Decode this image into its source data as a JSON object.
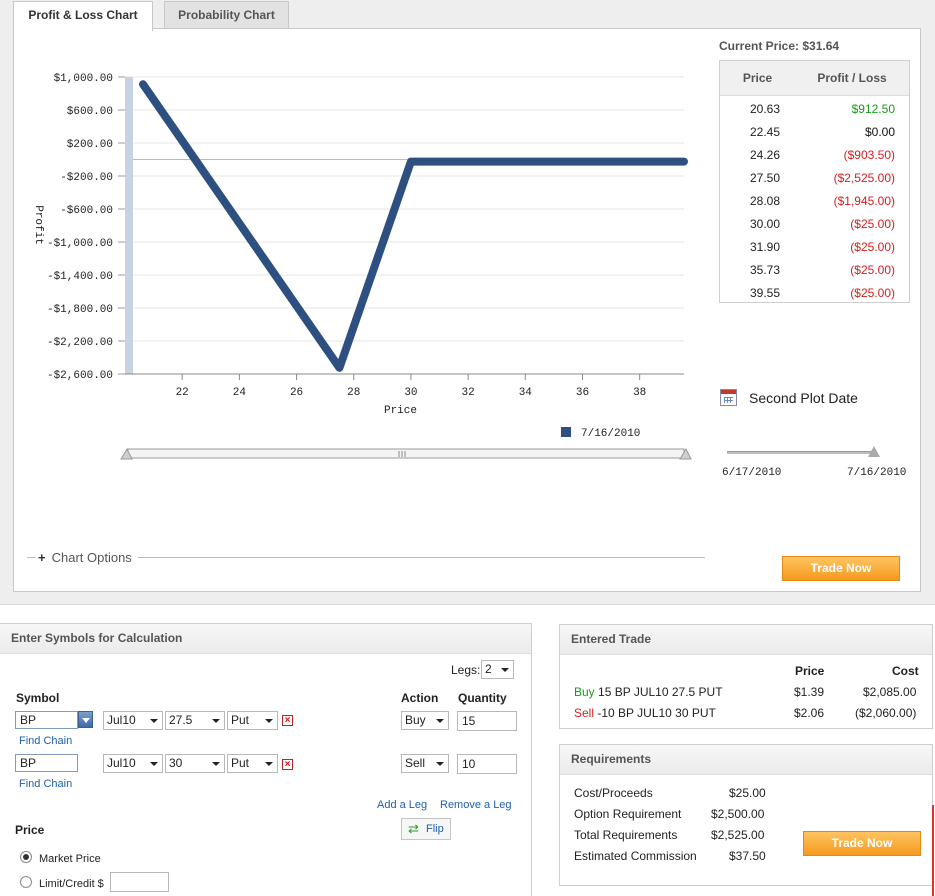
{
  "tabs": [
    {
      "label": "Profit & Loss Chart",
      "active": true
    },
    {
      "label": "Probability Chart",
      "active": false
    }
  ],
  "current_price": "Current Price: $31.64",
  "pl_table": {
    "headers": [
      "Price",
      "Profit / Loss"
    ],
    "rows": [
      {
        "price": "20.63",
        "pl": "$912.50",
        "sign": "pos"
      },
      {
        "price": "22.45",
        "pl": "$0.00",
        "sign": "zero"
      },
      {
        "price": "24.26",
        "pl": "($903.50)",
        "sign": "neg"
      },
      {
        "price": "27.50",
        "pl": "($2,525.00)",
        "sign": "neg"
      },
      {
        "price": "28.08",
        "pl": "($1,945.00)",
        "sign": "neg"
      },
      {
        "price": "30.00",
        "pl": "($25.00)",
        "sign": "neg"
      },
      {
        "price": "31.90",
        "pl": "($25.00)",
        "sign": "neg"
      },
      {
        "price": "35.73",
        "pl": "($25.00)",
        "sign": "neg"
      },
      {
        "price": "39.55",
        "pl": "($25.00)",
        "sign": "neg"
      }
    ]
  },
  "chart_data": {
    "type": "line",
    "title": "",
    "xlabel": "Price",
    "ylabel": "Profit",
    "xlim": [
      20.0,
      39.55
    ],
    "ylim": [
      -2600,
      1000
    ],
    "x_ticks": [
      22,
      24,
      26,
      28,
      30,
      32,
      34,
      36,
      38
    ],
    "y_ticks": [
      1000,
      600,
      200,
      -200,
      -600,
      -1000,
      -1400,
      -1800,
      -2200,
      -2600
    ],
    "y_tick_labels": [
      "$1,000.00",
      "$600.00",
      "$200.00",
      "-$200.00",
      "-$600.00",
      "-$1,000.00",
      "-$1,400.00",
      "-$1,800.00",
      "-$2,200.00",
      "-$2,600.00"
    ],
    "grid": true,
    "legend_position": "bottom-right",
    "series": [
      {
        "name": "7/16/2010",
        "color": "#2e5080",
        "x": [
          20.63,
          27.5,
          30.0,
          39.55
        ],
        "y": [
          912.5,
          -2525.0,
          -25.0,
          -25.0
        ]
      }
    ]
  },
  "second_plot": {
    "label": "Second Plot Date",
    "icon": "calendar-icon",
    "start": "6/17/2010",
    "end": "7/16/2010"
  },
  "chart_options_label": "Chart Options",
  "trade_now_label": "Trade Now",
  "calc": {
    "title": "Enter Symbols for Calculation",
    "legs_label": "Legs:",
    "legs_value": "2",
    "symbol_header": "Symbol",
    "action_header": "Action",
    "quantity_header": "Quantity",
    "find_chain": "Find Chain",
    "legs": [
      {
        "symbol": "BP",
        "expiry": "Jul10",
        "strike": "27.5",
        "type": "Put",
        "action": "Buy",
        "quantity": "15"
      },
      {
        "symbol": "BP",
        "expiry": "Jul10",
        "strike": "30",
        "type": "Put",
        "action": "Sell",
        "quantity": "10"
      }
    ],
    "add_leg": "Add a Leg",
    "remove_leg": "Remove a Leg",
    "flip": "Flip",
    "price_header": "Price",
    "market_price": "Market Price",
    "limit_credit": "Limit/Credit $"
  },
  "entered_trade": {
    "title": "Entered Trade",
    "headers": {
      "price": "Price",
      "cost": "Cost"
    },
    "rows": [
      {
        "action": "Buy",
        "desc": " 15 BP JUL10 27.5 PUT",
        "price": "$1.39",
        "cost": "$2,085.00",
        "cost_sign": "pos"
      },
      {
        "action": "Sell",
        "desc": " -10 BP JUL10 30 PUT",
        "price": "$2.06",
        "cost": "($2,060.00)",
        "cost_sign": "neg"
      }
    ]
  },
  "requirements": {
    "title": "Requirements",
    "rows": [
      {
        "label": "Cost/Proceeds",
        "value": "$25.00"
      },
      {
        "label": "Option Requirement",
        "value": "$2,500.00"
      },
      {
        "label": "Total Requirements",
        "value": "$2,525.00"
      },
      {
        "label": "Estimated Commission",
        "value": "$37.50"
      }
    ]
  }
}
